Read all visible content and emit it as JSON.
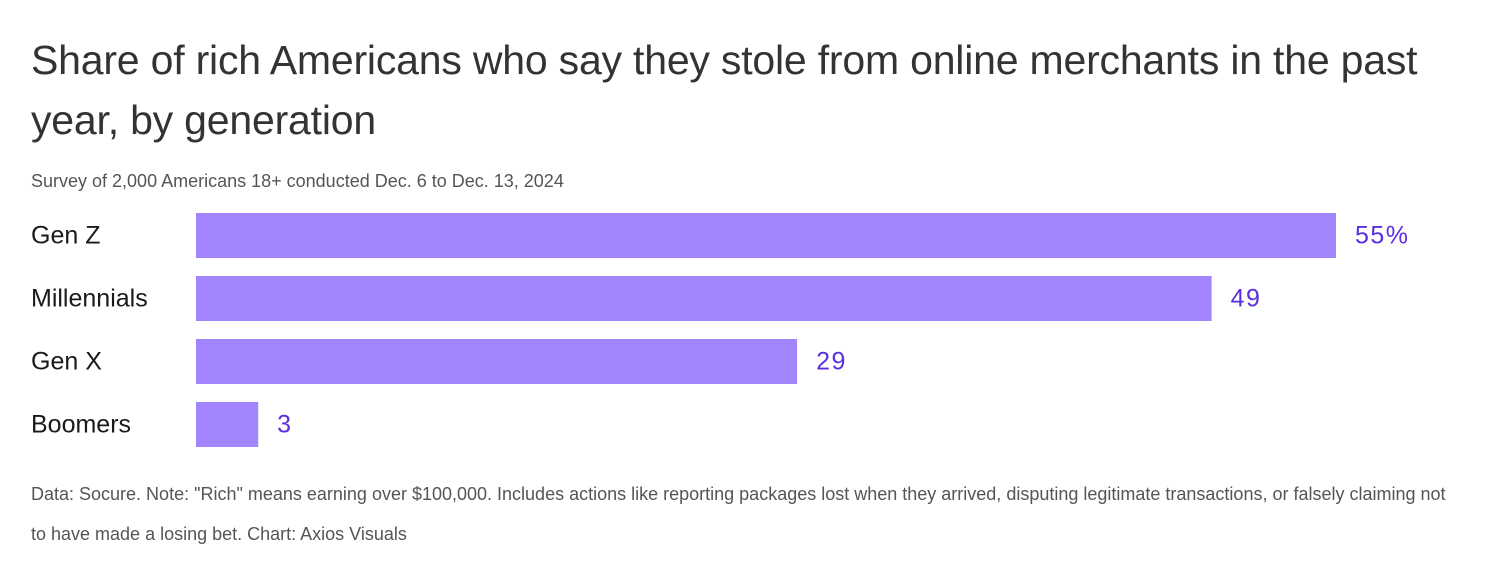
{
  "header": {
    "title": "Share of rich Americans who say they stole from online merchants in the past year, by generation",
    "subtitle": "Survey of 2,000 Americans 18+ conducted Dec. 6 to Dec. 13, 2024"
  },
  "footer": {
    "note": "Data: Socure. Note: \"Rich\" means earning over $100,000. Includes actions like reporting packages lost when they arrived, disputing legitimate transactions, or falsely claiming not to have made a losing bet. Chart: Axios Visuals"
  },
  "chart_data": {
    "type": "bar",
    "orientation": "horizontal",
    "categories": [
      "Gen Z",
      "Millennials",
      "Gen X",
      "Boomers"
    ],
    "values": [
      55,
      49,
      29,
      3
    ],
    "value_labels": [
      "55%",
      "49",
      "29",
      "3"
    ],
    "title": "Share of rich Americans who say they stole from online merchants in the past year, by generation",
    "xlabel": "",
    "ylabel": "",
    "xlim": [
      0,
      55
    ],
    "grid": false,
    "legend": "none",
    "colors": {
      "bar": "#a284ff",
      "value_label": "#5b2ee0",
      "category_label": "#1a1a1a"
    }
  }
}
